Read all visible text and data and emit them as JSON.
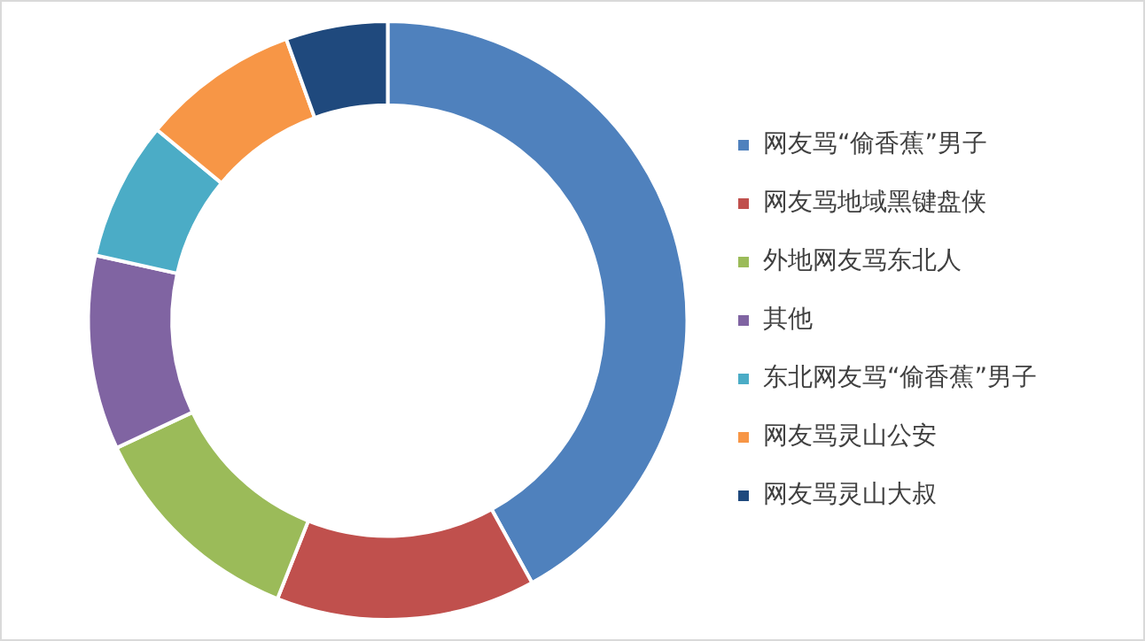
{
  "chart_data": {
    "type": "donut",
    "categories": [
      "网友骂“偷香蕉”男子",
      "网友骂地域黑键盘侠",
      "外地网友骂东北人",
      "其他",
      "东北网友骂“偷香蕉”男子",
      "网友骂灵山公安",
      "网友骂灵山大叔"
    ],
    "values": [
      42,
      14,
      12,
      10.5,
      7.5,
      8.5,
      5.5
    ],
    "colors": [
      "#4f81bd",
      "#c0504d",
      "#9bbb59",
      "#8064a2",
      "#4bacc6",
      "#f79646",
      "#1f497d"
    ],
    "legend": "right"
  }
}
